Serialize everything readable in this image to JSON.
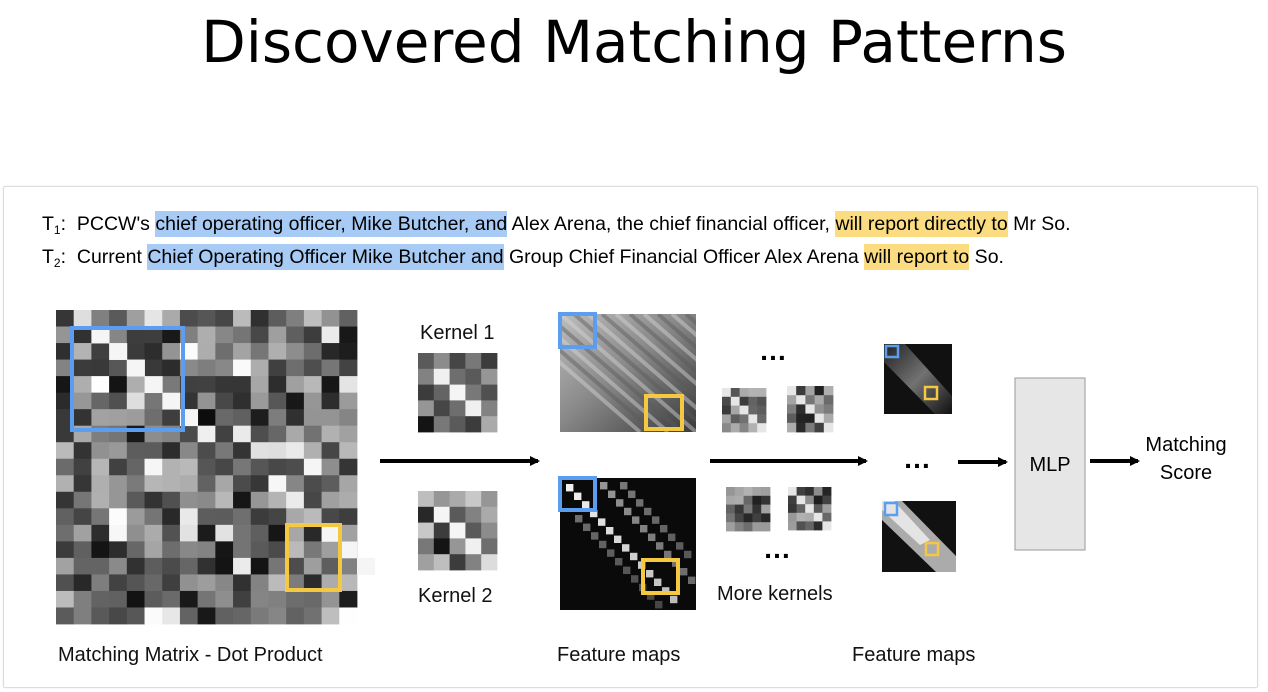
{
  "title": "Discovered Matching Patterns",
  "sentences": {
    "t1": {
      "label_main": "T",
      "label_sub": "1",
      "label_colon": ":",
      "p1": "PCCW's ",
      "hl_blue": "chief operating officer, Mike Butcher, and",
      "p2": " Alex Arena, the chief financial officer, ",
      "hl_yellow": "will report directly to",
      "p3": " Mr So."
    },
    "t2": {
      "label_main": "T",
      "label_sub": "2",
      "label_colon": ":",
      "p1": "Current ",
      "hl_blue": "Chief Operating Officer Mike Butcher and",
      "p2": " Group Chief Financial Officer Alex Arena ",
      "hl_yellow": "will report to",
      "p3": " So."
    }
  },
  "labels": {
    "kernel1": "Kernel 1",
    "kernel2": "Kernel 2",
    "matching_matrix": "Matching Matrix - Dot Product",
    "feature_maps_1": "Feature maps",
    "feature_maps_2": "Feature maps",
    "more_kernels": "More kernels",
    "mlp": "MLP",
    "score_line1": "Matching",
    "score_line2": "Score",
    "ellipsis": "…"
  },
  "colors": {
    "blue_box": "#5b9ef0",
    "yellow_box": "#f5c842",
    "blue_highlight": "#a8cbf5",
    "yellow_highlight": "#fbdc80",
    "mlp_fill": "#e6e6e6"
  }
}
